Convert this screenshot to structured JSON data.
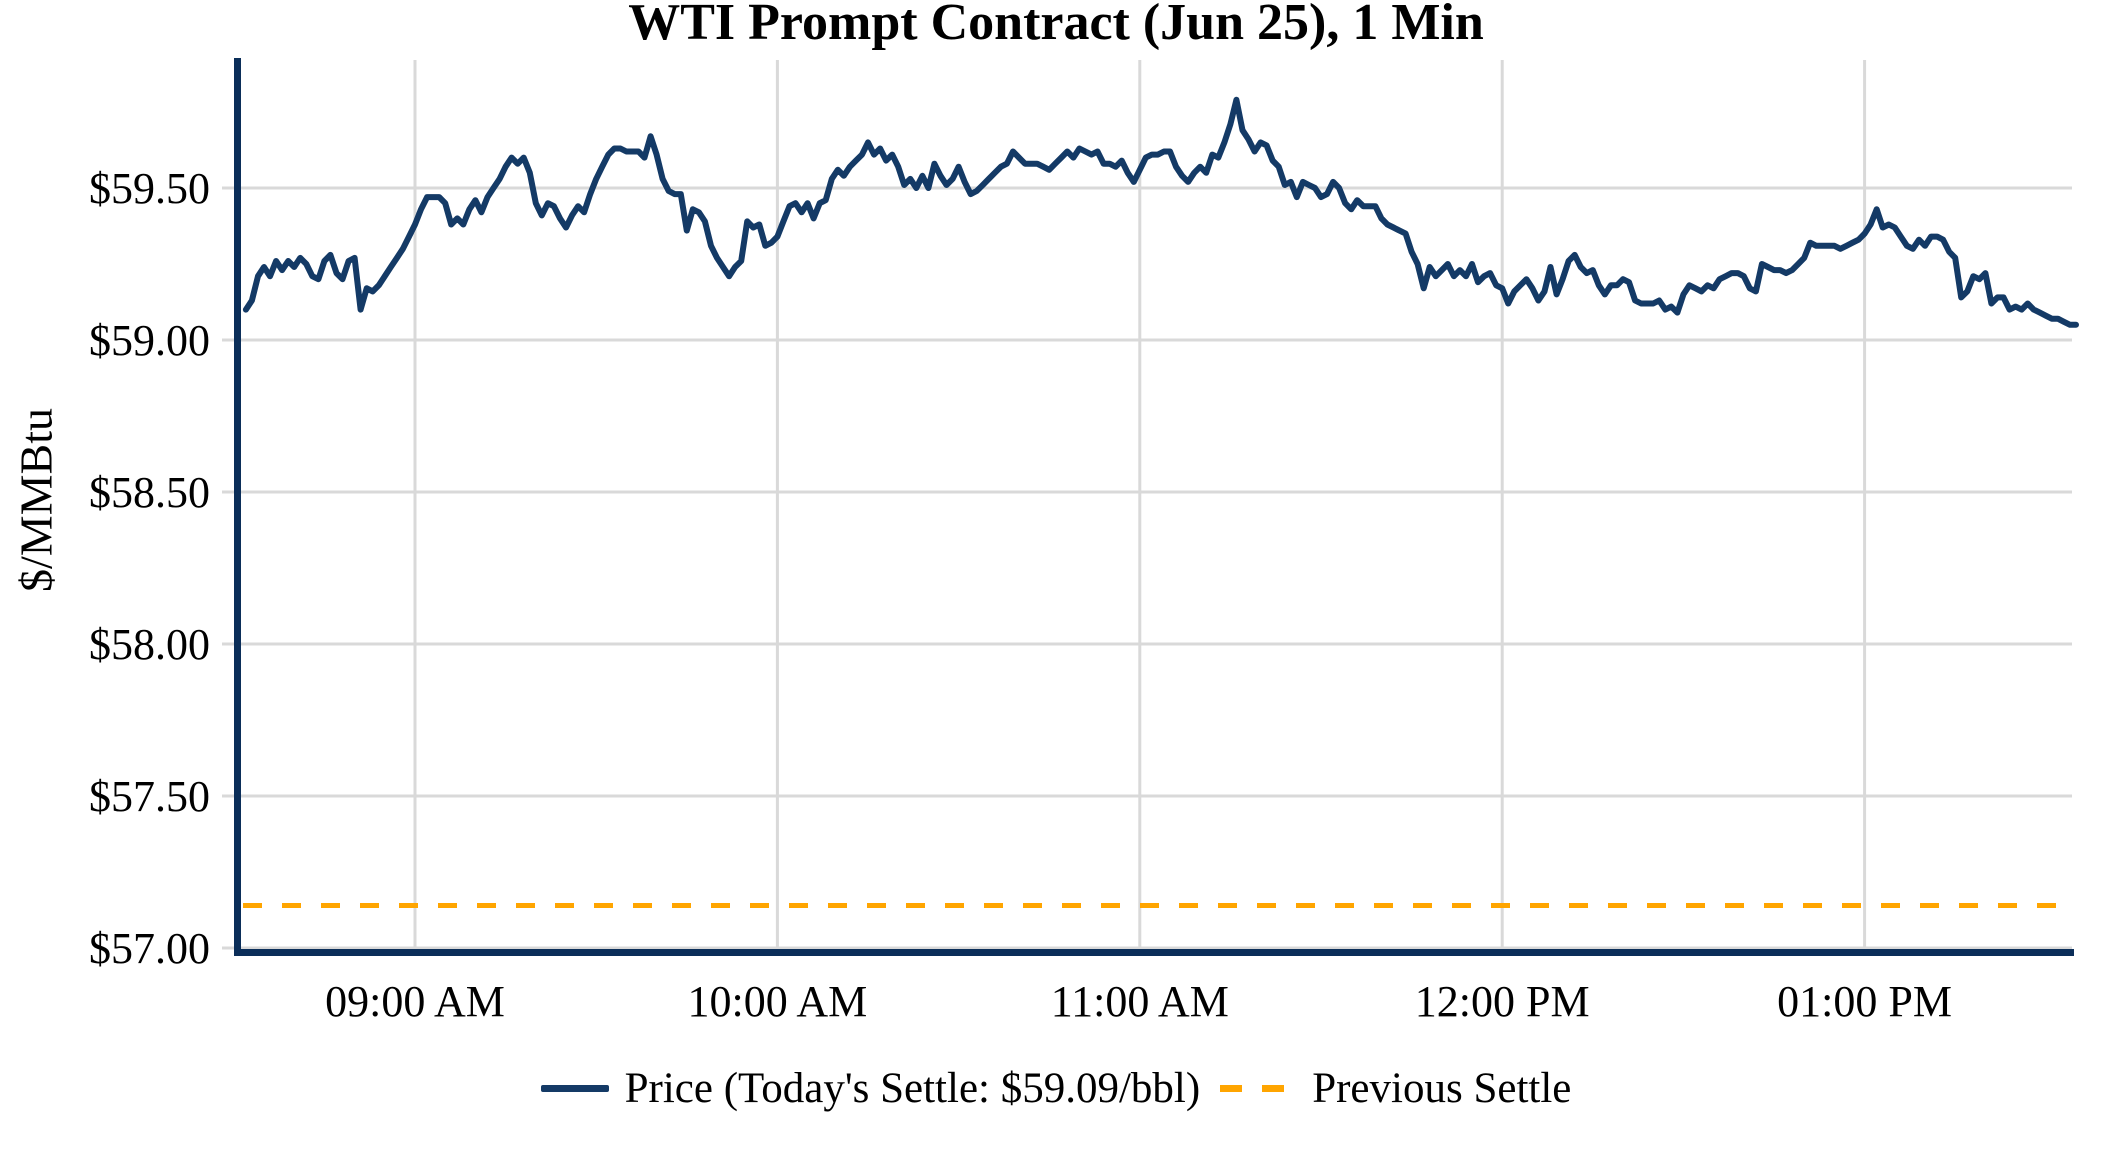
{
  "title": "WTI Prompt Contract (Jun 25), 1 Min",
  "y_axis": {
    "label": "$/MMBtu",
    "ticks": [
      {
        "label": "$57.00",
        "value": 57.0
      },
      {
        "label": "$57.50",
        "value": 57.5
      },
      {
        "label": "$58.00",
        "value": 58.0
      },
      {
        "label": "$58.50",
        "value": 58.5
      },
      {
        "label": "$59.00",
        "value": 59.0
      },
      {
        "label": "$59.50",
        "value": 59.5
      }
    ]
  },
  "x_axis": {
    "ticks": [
      {
        "label": "09:00 AM",
        "m": 0
      },
      {
        "label": "10:00 AM",
        "m": 60
      },
      {
        "label": "11:00 AM",
        "m": 120
      },
      {
        "label": "12:00 PM",
        "m": 180
      },
      {
        "label": "01:00 PM",
        "m": 240
      }
    ]
  },
  "legend": {
    "items": [
      {
        "label": "Price (Today's Settle: $59.09/bbl)",
        "swatch": "solid-line"
      },
      {
        "label": "Previous Settle",
        "swatch": "dashed-line"
      }
    ]
  },
  "colors": {
    "price_line": "#143a66",
    "spine": "#0b2e59",
    "previous_settle": "#FFA500",
    "gridline": "#d9d9d9",
    "text": "#000000"
  },
  "chart_data": {
    "type": "line",
    "title": "WTI Prompt Contract (Jun 25), 1 Min",
    "xlabel": "",
    "ylabel": "$/MMBtu",
    "ylim": [
      56.97,
      59.93
    ],
    "grid": true,
    "legend_position": "bottom-center",
    "x_start_time": "08:32 AM",
    "x_end_time": "01:35 PM",
    "interval_minutes": 1,
    "x_start_m": -28,
    "today_settle": 59.09,
    "previous_settle": 57.14,
    "series": [
      {
        "name": "Price (Today's Settle: $59.09/bbl)",
        "values": [
          59.1,
          59.13,
          59.21,
          59.24,
          59.21,
          59.26,
          59.23,
          59.26,
          59.24,
          59.27,
          59.25,
          59.21,
          59.2,
          59.26,
          59.28,
          59.22,
          59.2,
          59.26,
          59.27,
          59.1,
          59.17,
          59.16,
          59.18,
          59.21,
          59.24,
          59.27,
          59.3,
          59.34,
          59.38,
          59.43,
          59.47,
          59.47,
          59.47,
          59.45,
          59.38,
          59.4,
          59.38,
          59.43,
          59.46,
          59.42,
          59.47,
          59.5,
          59.53,
          59.57,
          59.6,
          59.58,
          59.6,
          59.55,
          59.45,
          59.41,
          59.45,
          59.44,
          59.4,
          59.37,
          59.41,
          59.44,
          59.42,
          59.48,
          59.53,
          59.57,
          59.61,
          59.63,
          59.63,
          59.62,
          59.62,
          59.62,
          59.6,
          59.67,
          59.61,
          59.53,
          59.49,
          59.48,
          59.48,
          59.36,
          59.43,
          59.42,
          59.39,
          59.31,
          59.27,
          59.24,
          59.21,
          59.24,
          59.26,
          59.39,
          59.37,
          59.38,
          59.31,
          59.32,
          59.34,
          59.39,
          59.44,
          59.45,
          59.42,
          59.45,
          59.4,
          59.45,
          59.46,
          59.53,
          59.56,
          59.54,
          59.57,
          59.59,
          59.61,
          59.65,
          59.61,
          59.63,
          59.59,
          59.61,
          59.57,
          59.51,
          59.53,
          59.5,
          59.54,
          59.5,
          59.58,
          59.54,
          59.51,
          59.53,
          59.57,
          59.52,
          59.48,
          59.49,
          59.51,
          59.53,
          59.55,
          59.57,
          59.58,
          59.62,
          59.6,
          59.58,
          59.58,
          59.58,
          59.57,
          59.56,
          59.58,
          59.6,
          59.62,
          59.6,
          59.63,
          59.62,
          59.61,
          59.62,
          59.58,
          59.58,
          59.57,
          59.59,
          59.55,
          59.52,
          59.56,
          59.6,
          59.61,
          59.61,
          59.62,
          59.62,
          59.57,
          59.54,
          59.52,
          59.55,
          59.57,
          59.55,
          59.61,
          59.6,
          59.65,
          59.71,
          59.79,
          59.69,
          59.66,
          59.62,
          59.65,
          59.64,
          59.59,
          59.57,
          59.51,
          59.52,
          59.47,
          59.52,
          59.51,
          59.5,
          59.47,
          59.48,
          59.52,
          59.5,
          59.45,
          59.43,
          59.46,
          59.44,
          59.44,
          59.44,
          59.4,
          59.38,
          59.37,
          59.36,
          59.35,
          59.29,
          59.25,
          59.17,
          59.24,
          59.21,
          59.23,
          59.25,
          59.21,
          59.23,
          59.21,
          59.25,
          59.19,
          59.21,
          59.22,
          59.18,
          59.17,
          59.12,
          59.16,
          59.18,
          59.2,
          59.17,
          59.13,
          59.16,
          59.24,
          59.15,
          59.2,
          59.26,
          59.28,
          59.24,
          59.22,
          59.23,
          59.18,
          59.15,
          59.18,
          59.18,
          59.2,
          59.19,
          59.13,
          59.12,
          59.12,
          59.12,
          59.13,
          59.1,
          59.11,
          59.09,
          59.15,
          59.18,
          59.17,
          59.16,
          59.18,
          59.17,
          59.2,
          59.21,
          59.22,
          59.22,
          59.21,
          59.17,
          59.16,
          59.25,
          59.24,
          59.23,
          59.23,
          59.22,
          59.23,
          59.25,
          59.27,
          59.32,
          59.31,
          59.31,
          59.31,
          59.31,
          59.3,
          59.31,
          59.32,
          59.33,
          59.35,
          59.38,
          59.43,
          59.37,
          59.38,
          59.37,
          59.34,
          59.31,
          59.3,
          59.33,
          59.31,
          59.34,
          59.34,
          59.33,
          59.29,
          59.27,
          59.14,
          59.16,
          59.21,
          59.2,
          59.22,
          59.12,
          59.14,
          59.14,
          59.1,
          59.11,
          59.1,
          59.12,
          59.1,
          59.09,
          59.08,
          59.07,
          59.07,
          59.06,
          59.05,
          59.05
        ]
      },
      {
        "name": "Previous Settle",
        "constant_value": 57.14
      }
    ]
  }
}
